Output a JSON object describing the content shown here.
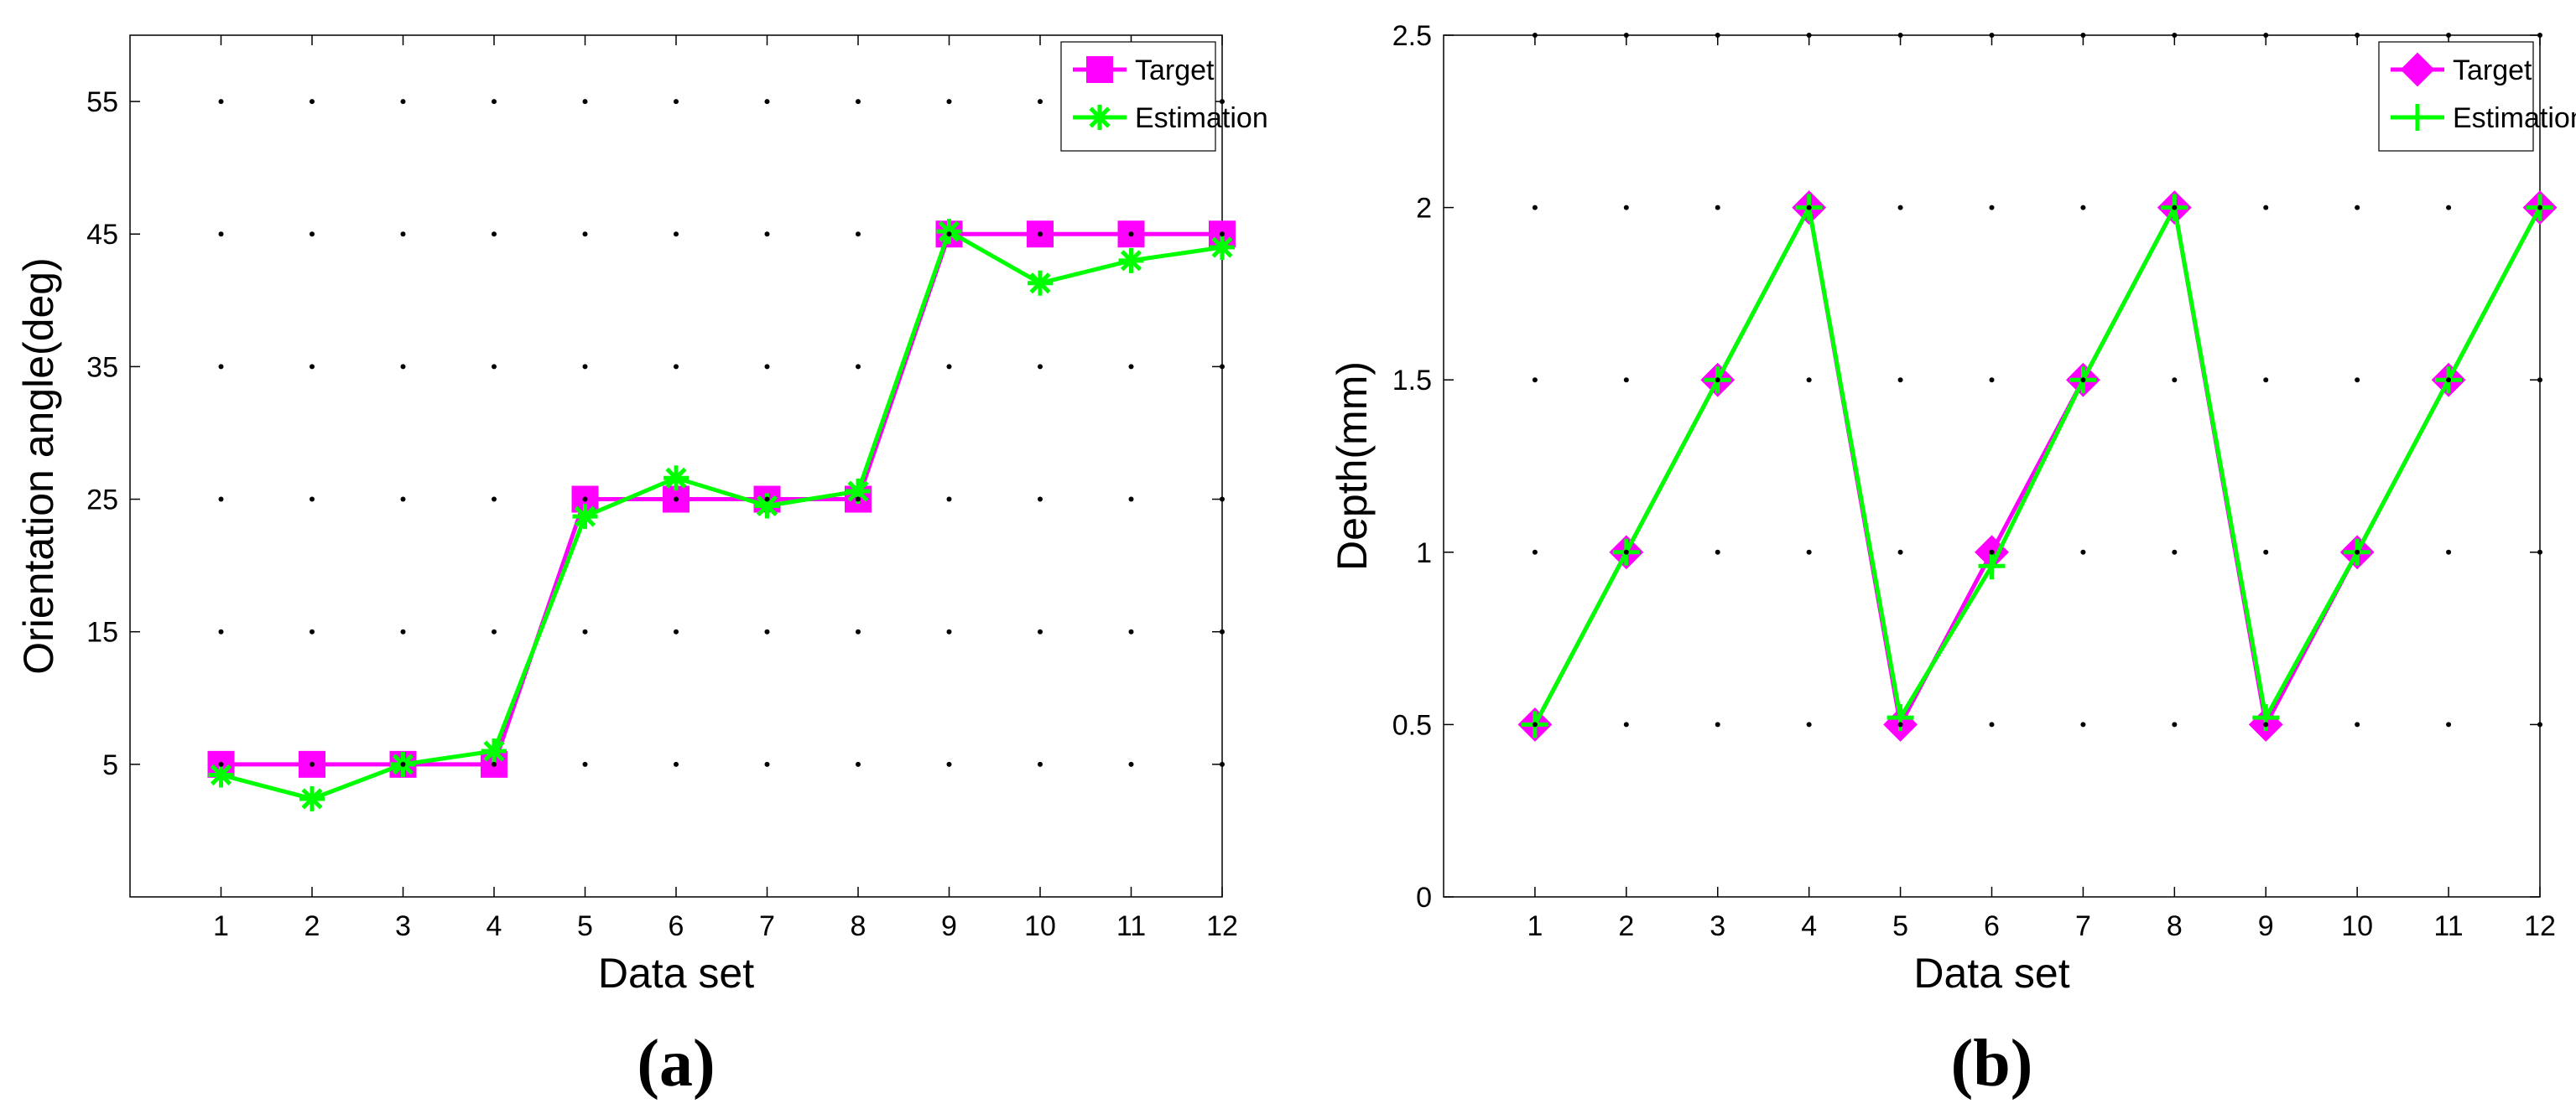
{
  "chart_data": [
    {
      "type": "line",
      "panel_label": "(a)",
      "xlabel": "Data set",
      "ylabel": "Orientation angle(deg)",
      "x": [
        1,
        2,
        3,
        4,
        5,
        6,
        7,
        8,
        9,
        10,
        11,
        12
      ],
      "xlim": [
        0,
        12
      ],
      "ylim": [
        -5,
        60
      ],
      "yticks": [
        5,
        15,
        25,
        35,
        45,
        55
      ],
      "grid": "dotted",
      "legend_position": "top-right",
      "series": [
        {
          "name": "Target",
          "marker": "square",
          "color": "#ff00ff",
          "values": [
            5,
            5,
            5,
            5,
            25,
            25,
            25,
            25,
            45,
            45,
            45,
            45
          ]
        },
        {
          "name": "Estimation",
          "marker": "asterisk",
          "color": "#00ff00",
          "values": [
            4.2,
            2.4,
            5.0,
            6.0,
            23.7,
            26.6,
            24.5,
            25.6,
            45.2,
            41.3,
            43.0,
            44.0
          ]
        }
      ]
    },
    {
      "type": "line",
      "panel_label": "(b)",
      "xlabel": "Data set",
      "ylabel": "Depth(mm)",
      "x": [
        1,
        2,
        3,
        4,
        5,
        6,
        7,
        8,
        9,
        10,
        11,
        12
      ],
      "xlim": [
        0,
        12
      ],
      "ylim": [
        0,
        2.5
      ],
      "yticks": [
        0,
        0.5,
        1,
        1.5,
        2,
        2.5
      ],
      "grid": "dotted",
      "legend_position": "top-right",
      "series": [
        {
          "name": "Target",
          "marker": "diamond",
          "color": "#ff00ff",
          "values": [
            0.5,
            1,
            1.5,
            2,
            0.5,
            1,
            1.5,
            2,
            0.5,
            1,
            1.5,
            2
          ]
        },
        {
          "name": "Estimation",
          "marker": "plus",
          "color": "#00ff00",
          "values": [
            0.5,
            1.0,
            1.5,
            2.0,
            0.52,
            0.96,
            1.5,
            2.0,
            0.52,
            1.0,
            1.5,
            2.0
          ]
        }
      ]
    }
  ]
}
